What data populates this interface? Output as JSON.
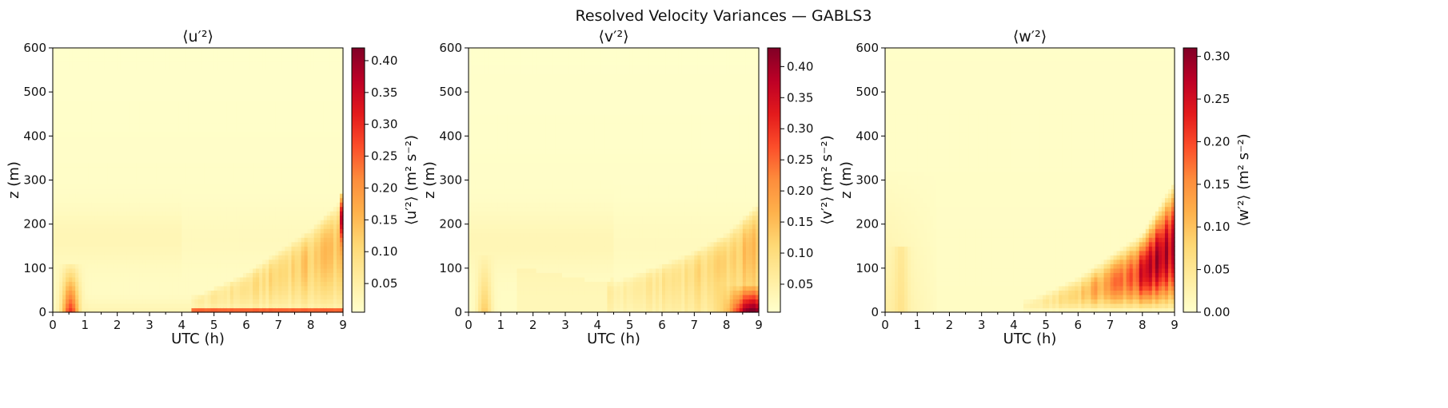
{
  "title": "Resolved Velocity Variances — GABLS3",
  "colormap": {
    "name": "YlOrRd",
    "stops": [
      "#ffffcc",
      "#ffeda0",
      "#fed976",
      "#feb24c",
      "#fd8d3c",
      "#fc4e2a",
      "#e31a1c",
      "#bd0026",
      "#800026"
    ]
  },
  "chart_data": [
    {
      "type": "heatmap",
      "title": "⟨u′²⟩",
      "xlabel": "UTC (h)",
      "ylabel": "z (m)",
      "xlim": [
        0,
        9
      ],
      "ylim": [
        0,
        600
      ],
      "xticks": [
        "0",
        "1",
        "2",
        "3",
        "4",
        "5",
        "6",
        "7",
        "8",
        "9"
      ],
      "yticks": [
        "0",
        "100",
        "200",
        "300",
        "400",
        "500",
        "600"
      ],
      "colorbar_label": "⟨u′²⟩ (m² s⁻²)",
      "clim": [
        0.005,
        0.42
      ],
      "colorbar_ticks": [
        "0.05",
        "0.10",
        "0.15",
        "0.20",
        "0.25",
        "0.30",
        "0.35",
        "0.40"
      ],
      "colorbar_tick_values": [
        0.05,
        0.1,
        0.15,
        0.2,
        0.25,
        0.3,
        0.35,
        0.4
      ],
      "features": {
        "early_peak": {
          "t": 0.5,
          "z_top": 100,
          "value": 0.28
        },
        "surface_layer": {
          "t_start": 4.3,
          "z": 5,
          "value": 0.33
        },
        "growing_layer_top": [
          [
            4.5,
            40
          ],
          [
            6,
            90
          ],
          [
            7,
            140
          ],
          [
            8,
            190
          ],
          [
            9,
            260
          ]
        ],
        "max_value": {
          "t": 9,
          "z": 230,
          "value": 0.4
        }
      }
    },
    {
      "type": "heatmap",
      "title": "⟨v′²⟩",
      "xlabel": "UTC (h)",
      "ylabel": "z (m)",
      "xlim": [
        0,
        9
      ],
      "ylim": [
        0,
        600
      ],
      "xticks": [
        "0",
        "1",
        "2",
        "3",
        "4",
        "5",
        "6",
        "7",
        "8",
        "9"
      ],
      "yticks": [
        "0",
        "100",
        "200",
        "300",
        "400",
        "500",
        "600"
      ],
      "colorbar_label": "⟨v′²⟩ (m² s⁻²)",
      "clim": [
        0.005,
        0.43
      ],
      "colorbar_ticks": [
        "0.05",
        "0.10",
        "0.15",
        "0.20",
        "0.25",
        "0.30",
        "0.35",
        "0.40"
      ],
      "colorbar_tick_values": [
        0.05,
        0.1,
        0.15,
        0.2,
        0.25,
        0.3,
        0.35,
        0.4
      ],
      "features": {
        "early_peak": {
          "t": 0.5,
          "z_top": 120,
          "value": 0.12
        },
        "bowl_min": {
          "t": 4,
          "z": 70
        },
        "growing_layer_top": [
          [
            4.5,
            70
          ],
          [
            6,
            110
          ],
          [
            7,
            140
          ],
          [
            8,
            180
          ],
          [
            9,
            250
          ]
        ],
        "max_value": {
          "t": 8.8,
          "z": 20,
          "value": 0.42
        }
      }
    },
    {
      "type": "heatmap",
      "title": "⟨w′²⟩",
      "xlabel": "UTC (h)",
      "ylabel": "z (m)",
      "xlim": [
        0,
        9
      ],
      "ylim": [
        0,
        600
      ],
      "xticks": [
        "0",
        "1",
        "2",
        "3",
        "4",
        "5",
        "6",
        "7",
        "8",
        "9"
      ],
      "yticks": [
        "0",
        "100",
        "200",
        "300",
        "400",
        "500",
        "600"
      ],
      "colorbar_label": "⟨w′²⟩ (m² s⁻²)",
      "clim": [
        0.0,
        0.31
      ],
      "colorbar_ticks": [
        "0.00",
        "0.05",
        "0.10",
        "0.15",
        "0.20",
        "0.25",
        "0.30"
      ],
      "colorbar_tick_values": [
        0.0,
        0.05,
        0.1,
        0.15,
        0.2,
        0.25,
        0.3
      ],
      "features": {
        "early_band": {
          "t_start": 0,
          "t_end": 1.5,
          "z_top": 300,
          "value": 0.03
        },
        "growing_layer_top": [
          [
            4.5,
            30
          ],
          [
            6,
            80
          ],
          [
            7,
            130
          ],
          [
            8,
            180
          ],
          [
            9,
            300
          ]
        ],
        "max_value": {
          "t": 8.8,
          "z": 100,
          "value": 0.3
        }
      }
    }
  ]
}
